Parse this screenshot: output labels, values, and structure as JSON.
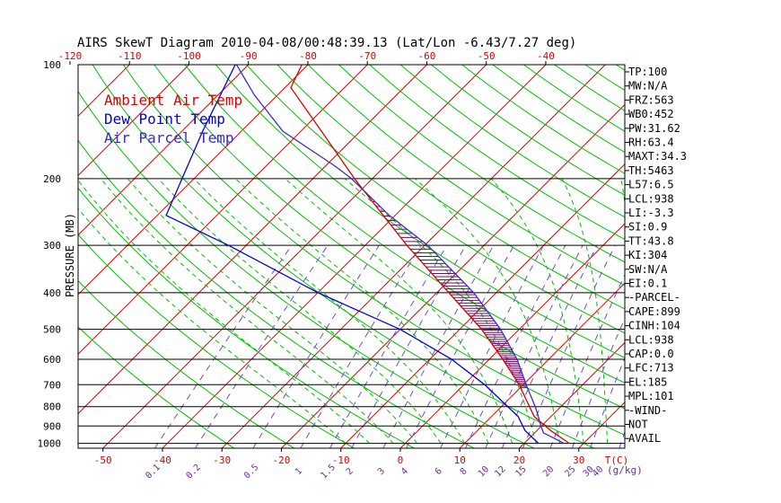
{
  "title": "AIRS SkewT Diagram 2010-04-08/00:48:39.13 (Lat/Lon -6.43/7.27 deg)",
  "legend": {
    "ambient": "Ambient Air Temp",
    "dewpoint": "Dew Point Temp",
    "parcel": "Air Parcel Temp"
  },
  "colors": {
    "ambient": "#e00000",
    "dewpoint": "#0000e0",
    "parcel": "#3a2ac8",
    "isotherm": "#e00000",
    "dry_adiabat": "#00c000",
    "moist_adiabat": "#00c000",
    "mixing_ratio": "#6a4cd6",
    "isobar": "#000000",
    "hatch": "#6a1060",
    "label_bottom": "#e00000",
    "label_mixing": "#6a2ca0"
  },
  "ylabel": "PRESSURE (MB)",
  "stats": [
    "TP:100",
    "MW:N/A",
    "FRZ:563",
    "WB0:452",
    "PW:31.62",
    "RH:63.4",
    "MAXT:34.3",
    "TH:5463",
    "L57:6.5",
    "LCL:938",
    "LI:-3.3",
    "SI:0.9",
    "TT:43.8",
    "KI:304",
    "SW:N/A",
    "EI:0.1",
    "-PARCEL-",
    "CAPE:899",
    "CINH:104",
    "LCL:938",
    "CAP:0.0",
    "LFC:713",
    "EL:185",
    "MPL:101",
    "-WIND-",
    "NOT",
    "AVAIL"
  ],
  "chart_data": {
    "type": "line",
    "y_scale": "log-pressure",
    "ylim": [
      1030,
      100
    ],
    "xlim_bottom_deg_c": [
      -55,
      40
    ],
    "pressure_ticks": [
      100,
      200,
      300,
      400,
      500,
      600,
      700,
      800,
      900,
      1000
    ],
    "top_temp_ticks": [
      -120,
      -110,
      -100,
      -90,
      -80,
      -70,
      -60,
      -50,
      -40
    ],
    "bottom_temp_ticks": [
      -50,
      -40,
      -30,
      -20,
      -10,
      0,
      10,
      20,
      30
    ],
    "bottom_axis_label": "T(C)",
    "mixing_ratio_ticks": [
      {
        "label": "0.1",
        "w": 0.1
      },
      {
        "label": "0.2",
        "w": 0.2
      },
      {
        "label": "0.5",
        "w": 0.5
      },
      {
        "label": "1",
        "w": 1
      },
      {
        "label": "1.5",
        "w": 1.5
      },
      {
        "label": "2",
        "w": 2
      },
      {
        "label": "3",
        "w": 3
      },
      {
        "label": "4",
        "w": 4
      },
      {
        "label": "6",
        "w": 6
      },
      {
        "label": "8",
        "w": 8
      },
      {
        "label": "10",
        "w": 10
      },
      {
        "label": "12",
        "w": 12
      },
      {
        "label": "15",
        "w": 15
      },
      {
        "label": "20",
        "w": 20
      },
      {
        "label": "25",
        "w": 25
      },
      {
        "label": "30",
        "w": 30
      },
      {
        "label": "40",
        "w": 40
      }
    ],
    "mixing_ratio_unit": "(g/kg)",
    "series": [
      {
        "name": "Ambient Air Temp",
        "points": [
          [
            1000,
            27.6
          ],
          [
            925,
            22.3
          ],
          [
            850,
            17.2
          ],
          [
            700,
            9.3
          ],
          [
            600,
            2.3
          ],
          [
            500,
            -6.3
          ],
          [
            400,
            -18.0
          ],
          [
            300,
            -33.0
          ],
          [
            250,
            -42.0
          ],
          [
            200,
            -53.0
          ],
          [
            150,
            -66.5
          ],
          [
            115,
            -79.0
          ],
          [
            100,
            -81.0
          ]
        ]
      },
      {
        "name": "Dew Point Temp",
        "points": [
          [
            1000,
            22.4
          ],
          [
            925,
            18.0
          ],
          [
            850,
            14.5
          ],
          [
            700,
            3.5
          ],
          [
            600,
            -6.3
          ],
          [
            500,
            -20.0
          ],
          [
            400,
            -40.0
          ],
          [
            300,
            -63.0
          ],
          [
            250,
            -78.5
          ],
          [
            200,
            -82.0
          ],
          [
            150,
            -86.5
          ],
          [
            100,
            -92.2
          ]
        ]
      },
      {
        "name": "Air Parcel Temp",
        "points": [
          [
            1000,
            26.7
          ],
          [
            938,
            21.5
          ],
          [
            900,
            19.9
          ],
          [
            850,
            17.9
          ],
          [
            800,
            15.7
          ],
          [
            713,
            11.2
          ],
          [
            600,
            4.7
          ],
          [
            500,
            -3.1
          ],
          [
            400,
            -13.8
          ],
          [
            300,
            -29.5
          ],
          [
            250,
            -41.0
          ],
          [
            200,
            -53.5
          ],
          [
            185,
            -58.5
          ],
          [
            150,
            -73.0
          ],
          [
            120,
            -84.0
          ],
          [
            100,
            -92.0
          ]
        ]
      }
    ]
  }
}
